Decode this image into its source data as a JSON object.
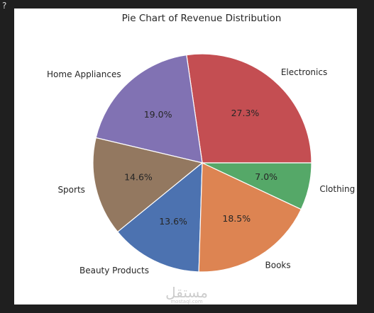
{
  "frame": {
    "corner_mark": "?"
  },
  "chart_data": {
    "type": "pie",
    "title": "Pie Chart of Revenue Distribution",
    "start_angle_deg": 0,
    "direction": "counterclockwise",
    "slices": [
      {
        "label": "Electronics",
        "value": 27.3,
        "pct_label": "27.3%",
        "color": "#c44e52"
      },
      {
        "label": "Home Appliances",
        "value": 19.0,
        "pct_label": "19.0%",
        "color": "#8172b3"
      },
      {
        "label": "Sports",
        "value": 14.6,
        "pct_label": "14.6%",
        "color": "#937860"
      },
      {
        "label": "Beauty Products",
        "value": 13.6,
        "pct_label": "13.6%",
        "color": "#4c72b0"
      },
      {
        "label": "Books",
        "value": 18.5,
        "pct_label": "18.5%",
        "color": "#dd8452"
      },
      {
        "label": "Clothing",
        "value": 7.0,
        "pct_label": "7.0%",
        "color": "#55a868"
      }
    ]
  },
  "watermark": {
    "text": "مستقل",
    "sub": "mostaql.com"
  }
}
